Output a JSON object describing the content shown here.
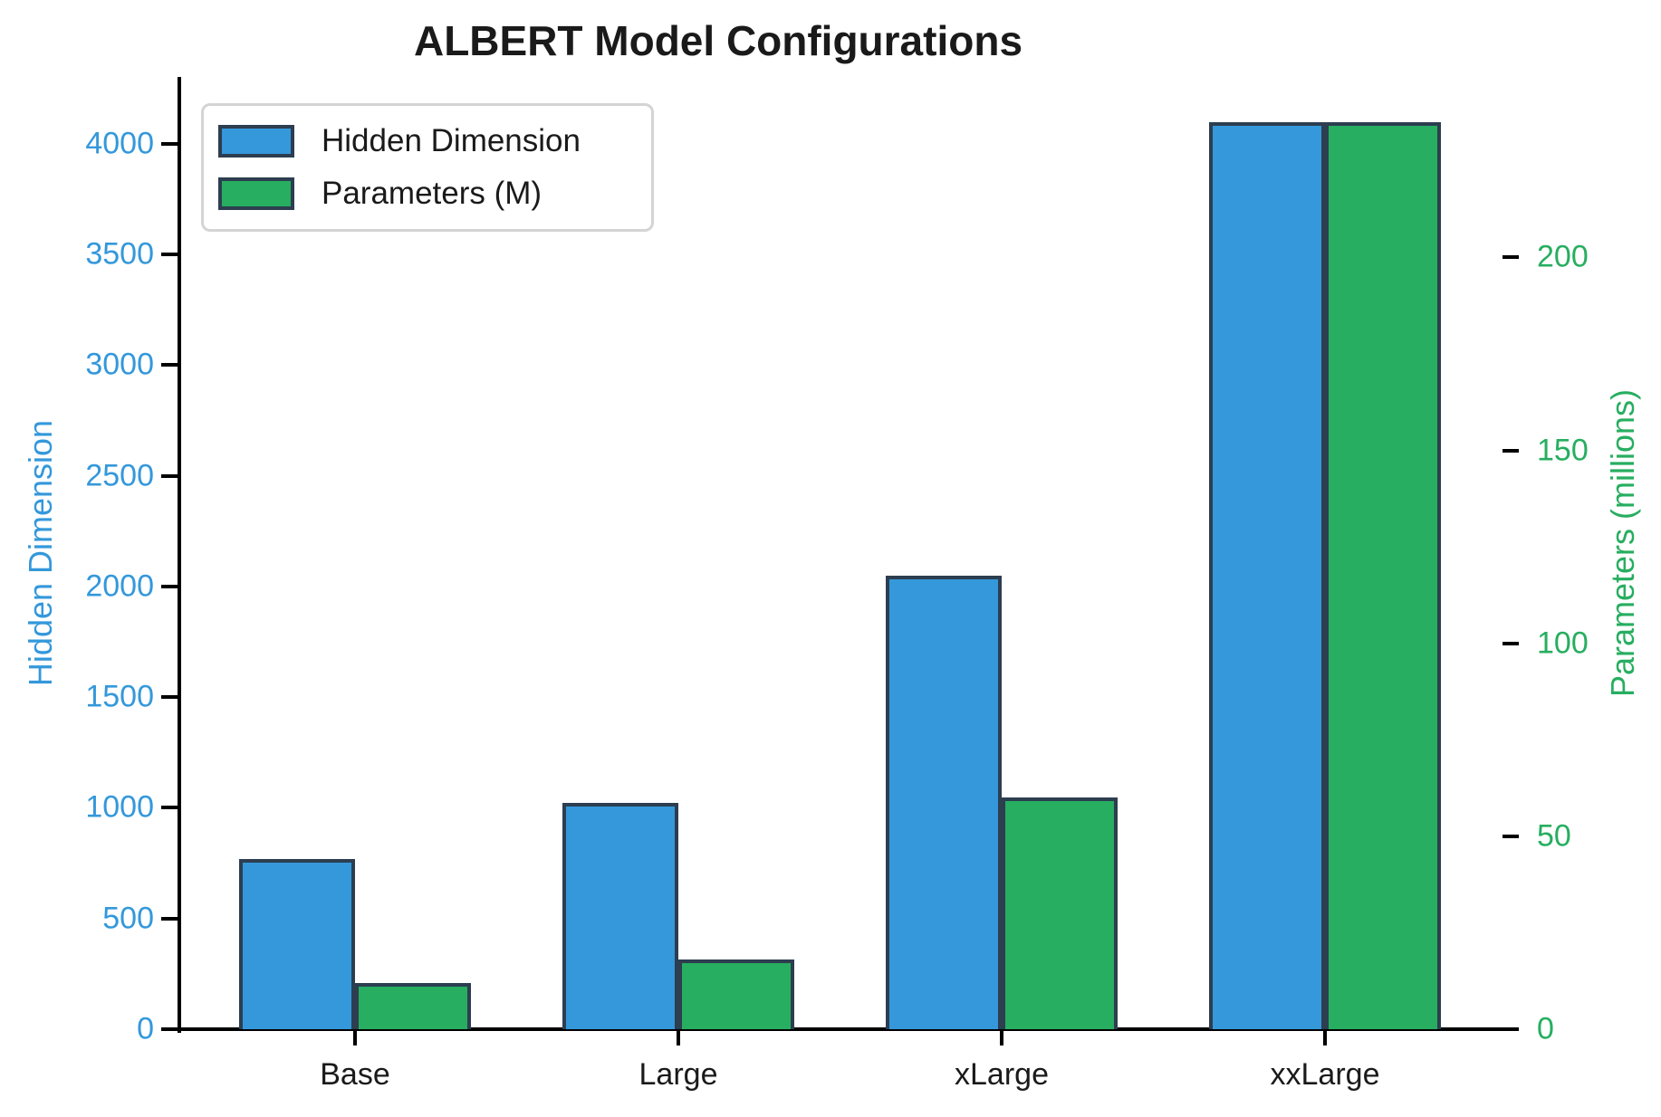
{
  "title": "ALBERT Model Configurations",
  "chart_data": {
    "type": "bar",
    "title": "ALBERT Model Configurations",
    "categories": [
      "Base",
      "Large",
      "xLarge",
      "xxLarge"
    ],
    "series": [
      {
        "name": "Hidden Dimension",
        "axis": "left",
        "color": "#3498db",
        "values": [
          768,
          1024,
          2048,
          4096
        ]
      },
      {
        "name": "Parameters (M)",
        "axis": "right",
        "color": "#27ae60",
        "values": [
          12,
          18,
          60,
          235
        ]
      }
    ],
    "left_axis": {
      "label": "Hidden Dimension",
      "color": "#3498db",
      "ticks": [
        0,
        500,
        1000,
        1500,
        2000,
        2500,
        3000,
        3500,
        4000
      ],
      "range": [
        0,
        4301
      ]
    },
    "right_axis": {
      "label": "Parameters (millions)",
      "color": "#27ae60",
      "ticks": [
        0,
        50,
        100,
        150,
        200
      ],
      "range": [
        0,
        246.8
      ]
    },
    "legend": {
      "position": "upper left",
      "entries": [
        "Hidden Dimension",
        "Parameters (M)"
      ]
    },
    "bar_edge_color": "#2c3e50",
    "grid": false
  }
}
